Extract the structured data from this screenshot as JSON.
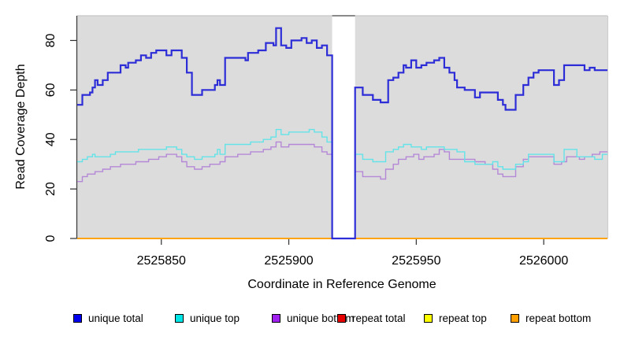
{
  "chart_data": {
    "type": "line",
    "style": "step-after",
    "title": "",
    "xlabel": "Coordinate in Reference Genome",
    "ylabel": "Read Coverage Depth",
    "xlim": [
      2525817,
      2526025
    ],
    "ylim": [
      0,
      90
    ],
    "x_ticks": [
      2525850,
      2525900,
      2525950,
      2526000
    ],
    "x_tick_labels": [
      "2525850",
      "2525900",
      "2525950",
      "2526000"
    ],
    "y_ticks": [
      0,
      20,
      40,
      60,
      80
    ],
    "y_tick_labels": [
      "0",
      "20",
      "40",
      "60",
      "80"
    ],
    "grid": false,
    "plot_bg": "#dcdcdc",
    "gap_region": {
      "x0": 2525917,
      "x1": 2525926,
      "fill": "#ffffff"
    },
    "border_colors": {
      "left": "#3f3f3f",
      "top": "#c6c6c6",
      "right": "#cccccc",
      "gap_top": "#8a8a8a"
    },
    "series": [
      {
        "name": "repeat total",
        "color": "#e00000",
        "width": 1.2,
        "points": [
          [
            2525817,
            0
          ],
          [
            2526025,
            0
          ]
        ]
      },
      {
        "name": "repeat top",
        "color": "#ffff00",
        "width": 1.2,
        "points": [
          [
            2525817,
            0
          ],
          [
            2526025,
            0
          ]
        ]
      },
      {
        "name": "repeat bottom",
        "color": "#ff9f00",
        "width": 1.7,
        "points": [
          [
            2525817,
            0
          ],
          [
            2526025,
            0
          ]
        ]
      },
      {
        "name": "unique bottom",
        "color": "#b488d6",
        "width": 1.4,
        "points": [
          [
            2525817,
            23
          ],
          [
            2525819,
            25
          ],
          [
            2525821,
            26
          ],
          [
            2525824,
            27
          ],
          [
            2525827,
            28
          ],
          [
            2525830,
            29
          ],
          [
            2525834,
            30
          ],
          [
            2525840,
            31
          ],
          [
            2525845,
            32
          ],
          [
            2525849,
            33
          ],
          [
            2525852,
            34
          ],
          [
            2525856,
            33
          ],
          [
            2525858,
            31
          ],
          [
            2525860,
            29
          ],
          [
            2525863,
            28
          ],
          [
            2525866,
            29
          ],
          [
            2525869,
            30
          ],
          [
            2525873,
            31
          ],
          [
            2525875,
            33
          ],
          [
            2525880,
            34
          ],
          [
            2525885,
            35
          ],
          [
            2525890,
            36
          ],
          [
            2525893,
            37
          ],
          [
            2525895,
            39
          ],
          [
            2525897,
            37
          ],
          [
            2525900,
            38
          ],
          [
            2525906,
            38
          ],
          [
            2525910,
            37
          ],
          [
            2525913,
            35
          ],
          [
            2525915,
            34
          ],
          [
            2525917,
            0
          ],
          [
            2525926,
            27
          ],
          [
            2525929,
            25
          ],
          [
            2525934,
            25
          ],
          [
            2525936,
            24
          ],
          [
            2525938,
            28
          ],
          [
            2525941,
            30
          ],
          [
            2525943,
            32
          ],
          [
            2525946,
            33
          ],
          [
            2525949,
            34
          ],
          [
            2525951,
            32
          ],
          [
            2525953,
            33
          ],
          [
            2525957,
            34
          ],
          [
            2525959,
            36
          ],
          [
            2525961,
            35
          ],
          [
            2525963,
            32
          ],
          [
            2525969,
            32
          ],
          [
            2525973,
            31
          ],
          [
            2525977,
            30
          ],
          [
            2525980,
            28
          ],
          [
            2525982,
            26
          ],
          [
            2525984,
            25
          ],
          [
            2525989,
            29
          ],
          [
            2525992,
            32
          ],
          [
            2525994,
            33
          ],
          [
            2525998,
            33
          ],
          [
            2526004,
            30
          ],
          [
            2526007,
            31
          ],
          [
            2526009,
            33
          ],
          [
            2526014,
            32
          ],
          [
            2526016,
            33
          ],
          [
            2526019,
            34
          ],
          [
            2526022,
            35
          ],
          [
            2526025,
            35
          ]
        ]
      },
      {
        "name": "unique top",
        "color": "#63e3e8",
        "width": 1.4,
        "points": [
          [
            2525817,
            31
          ],
          [
            2525819,
            32
          ],
          [
            2525821,
            33
          ],
          [
            2525823,
            34
          ],
          [
            2525824,
            33
          ],
          [
            2525828,
            33
          ],
          [
            2525830,
            34
          ],
          [
            2525832,
            35
          ],
          [
            2525838,
            35
          ],
          [
            2525841,
            36
          ],
          [
            2525848,
            36
          ],
          [
            2525852,
            37
          ],
          [
            2525856,
            36
          ],
          [
            2525858,
            34
          ],
          [
            2525860,
            33
          ],
          [
            2525863,
            32
          ],
          [
            2525866,
            33
          ],
          [
            2525871,
            34
          ],
          [
            2525872,
            36
          ],
          [
            2525873,
            34
          ],
          [
            2525875,
            38
          ],
          [
            2525883,
            38
          ],
          [
            2525885,
            39
          ],
          [
            2525890,
            40
          ],
          [
            2525893,
            41
          ],
          [
            2525895,
            44
          ],
          [
            2525897,
            42
          ],
          [
            2525900,
            43
          ],
          [
            2525904,
            43
          ],
          [
            2525908,
            44
          ],
          [
            2525910,
            43
          ],
          [
            2525913,
            41
          ],
          [
            2525915,
            39
          ],
          [
            2525917,
            0
          ],
          [
            2525926,
            34
          ],
          [
            2525929,
            32
          ],
          [
            2525933,
            31
          ],
          [
            2525938,
            35
          ],
          [
            2525941,
            36
          ],
          [
            2525943,
            37
          ],
          [
            2525945,
            38
          ],
          [
            2525948,
            37
          ],
          [
            2525952,
            36
          ],
          [
            2525954,
            37
          ],
          [
            2525961,
            36
          ],
          [
            2525964,
            36
          ],
          [
            2525966,
            35
          ],
          [
            2525969,
            31
          ],
          [
            2525973,
            30
          ],
          [
            2525980,
            31
          ],
          [
            2525982,
            29
          ],
          [
            2525984,
            28
          ],
          [
            2525989,
            30
          ],
          [
            2525992,
            31
          ],
          [
            2525994,
            34
          ],
          [
            2525998,
            34
          ],
          [
            2526004,
            31
          ],
          [
            2526008,
            36
          ],
          [
            2526013,
            33
          ],
          [
            2526016,
            33
          ],
          [
            2526020,
            32
          ],
          [
            2526023,
            34
          ],
          [
            2526025,
            34
          ]
        ]
      },
      {
        "name": "unique total",
        "color": "#2d2dd8",
        "width": 2.2,
        "points": [
          [
            2525817,
            54
          ],
          [
            2525819,
            58
          ],
          [
            2525822,
            59
          ],
          [
            2525823,
            61
          ],
          [
            2525824,
            64
          ],
          [
            2525825,
            62
          ],
          [
            2525827,
            64
          ],
          [
            2525829,
            67
          ],
          [
            2525834,
            70
          ],
          [
            2525836,
            69
          ],
          [
            2525837,
            71
          ],
          [
            2525840,
            72
          ],
          [
            2525842,
            74
          ],
          [
            2525844,
            73
          ],
          [
            2525846,
            75
          ],
          [
            2525848,
            76
          ],
          [
            2525852,
            74
          ],
          [
            2525854,
            76
          ],
          [
            2525858,
            73
          ],
          [
            2525860,
            67
          ],
          [
            2525862,
            58
          ],
          [
            2525866,
            60
          ],
          [
            2525871,
            62
          ],
          [
            2525872,
            64
          ],
          [
            2525873,
            62
          ],
          [
            2525875,
            73
          ],
          [
            2525883,
            72
          ],
          [
            2525884,
            75
          ],
          [
            2525888,
            76
          ],
          [
            2525891,
            79
          ],
          [
            2525894,
            78
          ],
          [
            2525895,
            85
          ],
          [
            2525897,
            78
          ],
          [
            2525899,
            77
          ],
          [
            2525901,
            80
          ],
          [
            2525905,
            81
          ],
          [
            2525907,
            79
          ],
          [
            2525909,
            80
          ],
          [
            2525911,
            77
          ],
          [
            2525913,
            78
          ],
          [
            2525915,
            74
          ],
          [
            2525917,
            0
          ],
          [
            2525926,
            61
          ],
          [
            2525929,
            58
          ],
          [
            2525933,
            56
          ],
          [
            2525936,
            55
          ],
          [
            2525939,
            64
          ],
          [
            2525941,
            65
          ],
          [
            2525943,
            67
          ],
          [
            2525945,
            70
          ],
          [
            2525946,
            69
          ],
          [
            2525948,
            72
          ],
          [
            2525950,
            69
          ],
          [
            2525952,
            70
          ],
          [
            2525954,
            71
          ],
          [
            2525957,
            72
          ],
          [
            2525959,
            73
          ],
          [
            2525961,
            69
          ],
          [
            2525963,
            67
          ],
          [
            2525965,
            64
          ],
          [
            2525966,
            61
          ],
          [
            2525969,
            60
          ],
          [
            2525973,
            57
          ],
          [
            2525975,
            59
          ],
          [
            2525982,
            56
          ],
          [
            2525984,
            54
          ],
          [
            2525985,
            52
          ],
          [
            2525989,
            58
          ],
          [
            2525992,
            62
          ],
          [
            2525994,
            65
          ],
          [
            2525996,
            67
          ],
          [
            2525998,
            68
          ],
          [
            2526004,
            62
          ],
          [
            2526006,
            64
          ],
          [
            2526008,
            70
          ],
          [
            2526013,
            70
          ],
          [
            2526016,
            68
          ],
          [
            2526018,
            69
          ],
          [
            2526020,
            68
          ],
          [
            2526025,
            68
          ]
        ]
      }
    ],
    "legend": [
      {
        "label": "unique total",
        "color": "#0000ee",
        "x": 93
      },
      {
        "label": "unique top",
        "color": "#00e5e5",
        "x": 222
      },
      {
        "label": "unique bottom",
        "color": "#a020f0",
        "x": 345
      },
      {
        "label": "repeat total",
        "color": "#e60000",
        "x": 428
      },
      {
        "label": "repeat top",
        "color": "#ffff00",
        "x": 538
      },
      {
        "label": "repeat bottom",
        "color": "#ff9f00",
        "x": 648
      }
    ],
    "legend_position": "bottom"
  }
}
